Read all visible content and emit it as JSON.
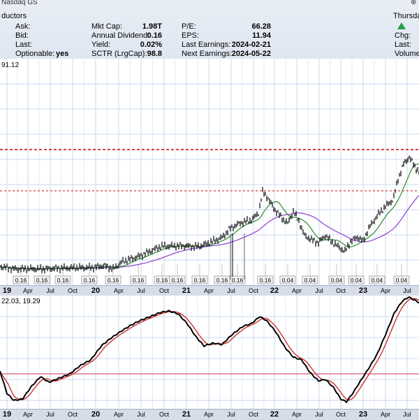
{
  "header": {
    "top_left": "Nasdaq GS",
    "top_right": "Thursday",
    "company_suffix": "ductors",
    "rows": [
      {
        "l1": "Ask:",
        "v1": "",
        "l2": "Mkt Cap:",
        "v2": "1.98T",
        "l3": "P/E:",
        "v3": "66.28"
      },
      {
        "l1": "Bid:",
        "v1": "",
        "l2": "Annual Dividend:",
        "v2": "0.16",
        "l3": "EPS:",
        "v3": "11.94"
      },
      {
        "l1": "Last:",
        "v1": "",
        "l2": "Yield:",
        "v2": "0.02%",
        "l3": "Last Earnings:",
        "v3": "2024-02-21"
      },
      {
        "l1": "Optionable:",
        "v1": "yes",
        "l2": "SCTR (LrgCap):",
        "v2": "98.8",
        "l3": "Next Earnings:",
        "v3": "2024-05-22"
      }
    ],
    "right_labels": [
      "Chg:",
      "Last:",
      "Volume:"
    ],
    "up_arrow_color": "#22a04a"
  },
  "chart_data": [
    {
      "type": "line",
      "title": "",
      "legend_text": "91.12",
      "x_ticks": [
        "19",
        "Apr",
        "Jul",
        "Oct",
        "20",
        "Apr",
        "Jul",
        "Oct",
        "21",
        "Apr",
        "Jul",
        "Oct",
        "22",
        "Apr",
        "Jul",
        "Oct",
        "23",
        "Apr",
        "Jul"
      ],
      "resistance_lines_color": "#cc0000",
      "dividend_labels": [
        "0.16",
        "0.16",
        "0.16",
        "0.16",
        "0.16",
        "0.16",
        "0.16",
        "0.16",
        "0.16",
        "0.16",
        "0.16",
        "0.16",
        "0.04",
        "0.04",
        "0.04",
        "0.04",
        "0.04",
        "0.04",
        "0.04",
        "0.04",
        "0.04",
        "0.04"
      ],
      "series": [
        {
          "name": "price",
          "color": "#000000"
        },
        {
          "name": "sma50",
          "color": "#2e8b2e"
        },
        {
          "name": "sma200",
          "color": "#8a3fd1"
        }
      ]
    },
    {
      "type": "line",
      "title": "",
      "legend_text": "22.03, 19.29",
      "x_ticks": [
        "19",
        "Apr",
        "Jul",
        "Oct",
        "20",
        "Apr",
        "Jul",
        "Oct",
        "21",
        "Apr",
        "Jul",
        "Oct",
        "22",
        "Apr",
        "Jul",
        "Oct",
        "23",
        "Apr",
        "Jul"
      ],
      "series": [
        {
          "name": "main",
          "color": "#000000"
        },
        {
          "name": "signal",
          "color": "#d03030"
        }
      ]
    }
  ]
}
